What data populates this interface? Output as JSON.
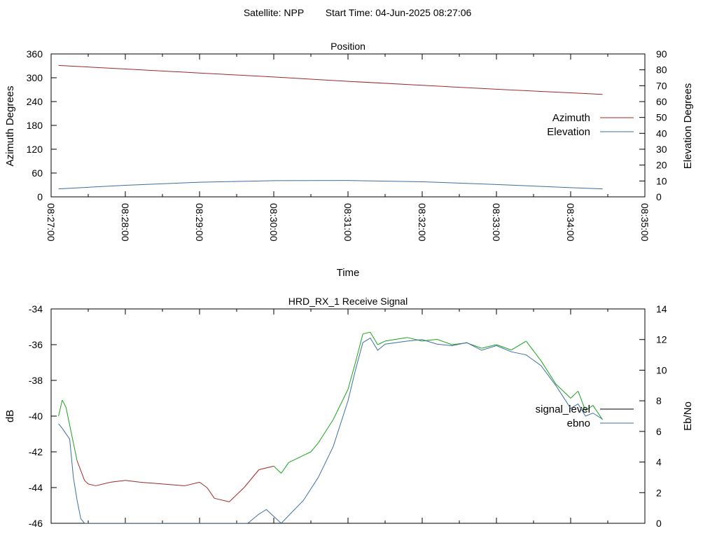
{
  "header": {
    "satellite_label": "Satellite: NPP",
    "start_time_label": "Start Time: 04-Jun-2025 08:27:06"
  },
  "chart_data": [
    {
      "type": "line",
      "title": "Position",
      "xlabel": "Time",
      "ylabel": "Azimuth Degrees",
      "y2label": "Elevation Degrees",
      "x_ticks": [
        "08:27:00",
        "08:28:00",
        "08:29:00",
        "08:30:00",
        "08:31:00",
        "08:32:00",
        "08:33:00",
        "08:34:00",
        "08:35:00"
      ],
      "ylim": [
        0,
        360
      ],
      "y_ticks": [
        0,
        60,
        120,
        180,
        240,
        300,
        360
      ],
      "y2lim": [
        0,
        90
      ],
      "y2_ticks": [
        0,
        10,
        20,
        30,
        40,
        50,
        60,
        70,
        80,
        90
      ],
      "xlim_minutes": [
        0,
        8
      ],
      "legend_position": "right",
      "series": [
        {
          "name": "Azimuth",
          "axis": "y",
          "color": "#a0282a",
          "x_minutes": [
            0.1,
            1,
            2,
            3,
            4,
            5,
            6,
            7,
            7.43
          ],
          "values": [
            331,
            322,
            312,
            302,
            291,
            281,
            271,
            262,
            258
          ]
        },
        {
          "name": "Elevation",
          "axis": "y2",
          "color": "#3a6fa0",
          "x_minutes": [
            0.1,
            1,
            2,
            3,
            4,
            5,
            6,
            7,
            7.43
          ],
          "values": [
            5,
            7.3,
            9.2,
            10.2,
            10.3,
            9.5,
            7.8,
            5.8,
            5
          ]
        }
      ]
    },
    {
      "type": "line",
      "title": "HRD_RX_1 Receive Signal",
      "ylabel": "dB",
      "y2label": "Eb/No",
      "ylim": [
        -46,
        -34
      ],
      "y_ticks": [
        -46,
        -44,
        -42,
        -40,
        -38,
        -36,
        -34
      ],
      "y2lim": [
        0,
        14
      ],
      "y2_ticks": [
        0,
        2,
        4,
        6,
        8,
        10,
        12,
        14
      ],
      "xlim_minutes": [
        0,
        8
      ],
      "legend_position": "right",
      "series": [
        {
          "name": "signal_level",
          "axis": "y",
          "color": "#000000",
          "segment_colors": [
            "#a0282a",
            "#1aa41a"
          ],
          "x_minutes": [
            0.1,
            0.15,
            0.2,
            0.3,
            0.35,
            0.45,
            0.5,
            0.6,
            0.8,
            1.0,
            1.2,
            1.5,
            1.8,
            2.0,
            2.1,
            2.2,
            2.4,
            2.6,
            2.8,
            3.0,
            3.1,
            3.2,
            3.4,
            3.5,
            3.6,
            3.8,
            4.0,
            4.1,
            4.2,
            4.3,
            4.4,
            4.5,
            4.8,
            5.0,
            5.2,
            5.4,
            5.6,
            5.8,
            6.0,
            6.2,
            6.4,
            6.6,
            6.8,
            7.0,
            7.1,
            7.2,
            7.3,
            7.43
          ],
          "values": [
            -40.0,
            -39.1,
            -39.5,
            -41.5,
            -42.5,
            -43.6,
            -43.8,
            -43.9,
            -43.7,
            -43.6,
            -43.7,
            -43.8,
            -43.9,
            -43.7,
            -44.0,
            -44.6,
            -44.8,
            -44.0,
            -43.0,
            -42.8,
            -43.2,
            -42.6,
            -42.2,
            -42.0,
            -41.5,
            -40.2,
            -38.5,
            -37.0,
            -35.4,
            -35.3,
            -36.0,
            -35.8,
            -35.6,
            -35.8,
            -35.7,
            -36.0,
            -35.9,
            -36.2,
            -36.0,
            -36.3,
            -35.8,
            -36.9,
            -38.2,
            -39.0,
            -38.6,
            -39.7,
            -39.4,
            -40.2
          ]
        },
        {
          "name": "ebno",
          "axis": "y2",
          "color": "#3a6fa0",
          "x_minutes": [
            0.1,
            0.15,
            0.25,
            0.3,
            0.35,
            0.4,
            0.45,
            2.65,
            2.8,
            2.9,
            3.1,
            3.4,
            3.6,
            3.8,
            4.0,
            4.1,
            4.2,
            4.3,
            4.4,
            4.5,
            4.8,
            5.0,
            5.2,
            5.4,
            5.6,
            5.8,
            6.0,
            6.2,
            6.4,
            6.6,
            6.8,
            7.0,
            7.1,
            7.2,
            7.3,
            7.43
          ],
          "values": [
            6.5,
            6.2,
            5.5,
            3.0,
            1.5,
            0.3,
            0,
            0,
            0.6,
            0.9,
            0,
            1.5,
            3.0,
            5.0,
            8.0,
            10.0,
            11.8,
            12.1,
            11.3,
            11.7,
            11.9,
            12.0,
            11.7,
            11.6,
            11.8,
            11.3,
            11.6,
            11.2,
            11.0,
            10.3,
            9.0,
            7.5,
            7.8,
            7.0,
            7.2,
            6.8
          ]
        }
      ]
    }
  ]
}
